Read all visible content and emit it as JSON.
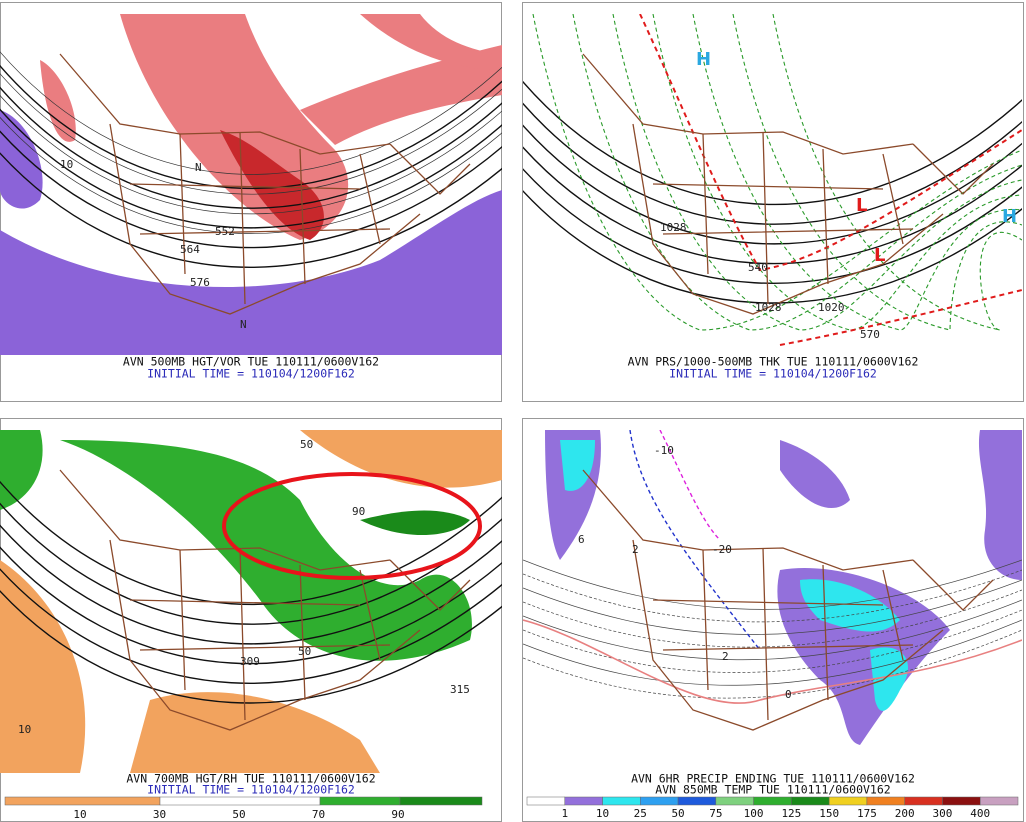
{
  "panels": [
    {
      "title": "AVN 500MB HGT/VOR TUE 110111/0600V162",
      "initial_time": "INITIAL TIME = 110104/1200F162",
      "map_labels": [
        "552",
        "564",
        "576",
        "N",
        "N",
        "10"
      ]
    },
    {
      "title": "AVN PRS/1000-500MB THK TUE 110111/0600V162",
      "initial_time": "INITIAL TIME = 110104/1200F162",
      "map_labels": [
        "H",
        "H",
        "L",
        "L",
        "1028",
        "1020",
        "1028",
        "570",
        "540"
      ]
    },
    {
      "title": "AVN 700MB HGT/RH TUE 110111/0600V162",
      "initial_time": "INITIAL TIME = 110104/1200F162",
      "map_labels": [
        "50",
        "90",
        "315",
        "309",
        "50",
        "10"
      ],
      "legend": [
        "10",
        "30",
        "50",
        "70",
        "90"
      ]
    },
    {
      "title": "AVN 6HR PRECIP ENDING TUE 110111/0600V162",
      "subtitle": "AVN 850MB TEMP TUE 110111/0600V162",
      "map_labels": [
        "-10",
        "-20",
        "0",
        "2",
        "2",
        "6"
      ],
      "legend": [
        "1",
        "10",
        "25",
        "50",
        "75",
        "100",
        "125",
        "150",
        "175",
        "200",
        "300",
        "400"
      ]
    }
  ]
}
